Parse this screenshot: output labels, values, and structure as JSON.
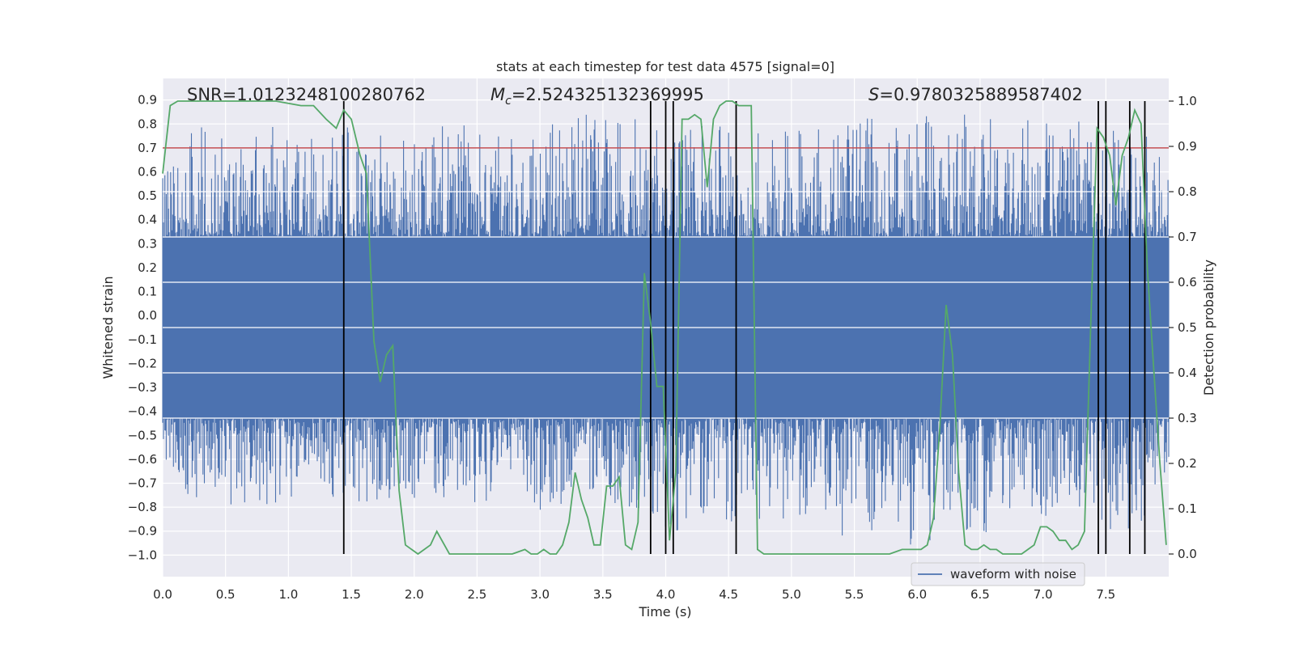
{
  "chart_data": {
    "type": "line",
    "title": "stats at each timestep for test data 4575 [signal=0]",
    "xlabel": "Time (s)",
    "ylabel": "Whitened strain",
    "y2label": "Detection probability",
    "xlim": [
      0.0,
      8.0
    ],
    "ylim": [
      -1.09,
      0.99
    ],
    "y2lim": [
      -0.05,
      1.05
    ],
    "xticks": [
      "0.0",
      "0.5",
      "1.0",
      "1.5",
      "2.0",
      "2.5",
      "3.0",
      "3.5",
      "4.0",
      "4.5",
      "5.0",
      "5.5",
      "6.0",
      "6.5",
      "7.0",
      "7.5"
    ],
    "yticks": [
      "0.9",
      "0.8",
      "0.7",
      "0.6",
      "0.5",
      "0.4",
      "0.3",
      "0.2",
      "0.1",
      "0.0",
      "−0.1",
      "−0.2",
      "−0.3",
      "−0.4",
      "−0.5",
      "−0.6",
      "−0.7",
      "−0.8",
      "−0.9",
      "−1.0"
    ],
    "y2ticks": [
      "1.0",
      "0.9",
      "0.8",
      "0.7",
      "0.6",
      "0.5",
      "0.4",
      "0.3",
      "0.2",
      "0.1",
      "0.0"
    ],
    "annotations": {
      "snr": "SNR=1.0123248100280762",
      "mc_symbol": "M",
      "mc_sub": "c",
      "mc_value": "=2.524325132369995",
      "s_symbol": "S",
      "s_value": "=0.9780325889587402"
    },
    "legend": {
      "label": "waveform with noise",
      "placement": "lower-right"
    },
    "threshold": {
      "y": 0.7,
      "color": "#c44e52"
    },
    "detection_events_x": [
      1.44,
      3.88,
      4.0,
      4.06,
      4.56,
      7.44,
      7.5,
      7.69,
      7.81
    ],
    "series": [
      {
        "name": "waveform with noise",
        "axis": "left",
        "color": "#4c72b0",
        "note_kind": "dense noise envelope",
        "x": [
          0.0,
          0.25,
          0.5,
          0.75,
          1.0,
          1.25,
          1.5,
          1.75,
          2.0,
          2.25,
          2.5,
          2.75,
          3.0,
          3.25,
          3.5,
          3.75,
          4.0,
          4.25,
          4.5,
          4.75,
          5.0,
          5.25,
          5.5,
          5.75,
          6.0,
          6.25,
          6.5,
          6.75,
          7.0,
          7.25,
          7.5,
          7.75,
          8.0
        ],
        "upper": [
          0.62,
          0.8,
          0.79,
          0.8,
          0.8,
          0.81,
          0.82,
          0.76,
          0.84,
          0.79,
          0.8,
          0.76,
          0.88,
          0.83,
          0.85,
          0.83,
          0.82,
          0.85,
          0.8,
          0.78,
          0.79,
          0.8,
          0.84,
          0.83,
          0.85,
          0.84,
          0.85,
          0.83,
          0.82,
          0.81,
          0.86,
          0.8,
          0.63
        ],
        "lower": [
          -0.66,
          -0.8,
          -0.79,
          -0.8,
          -0.79,
          -0.71,
          -0.84,
          -0.78,
          -0.79,
          -0.77,
          -0.78,
          -0.8,
          -0.86,
          -0.77,
          -0.79,
          -0.8,
          -0.97,
          -0.86,
          -0.88,
          -0.85,
          -0.87,
          -0.81,
          -0.99,
          -0.83,
          -1.0,
          -0.91,
          -0.93,
          -0.81,
          -0.85,
          -0.8,
          -0.91,
          -0.9,
          -0.64
        ]
      },
      {
        "name": "",
        "axis": "right",
        "color": "#55a868",
        "x": [
          0.0,
          0.06,
          0.12,
          0.3,
          0.6,
          0.9,
          1.1,
          1.2,
          1.3,
          1.38,
          1.44,
          1.5,
          1.57,
          1.62,
          1.68,
          1.73,
          1.78,
          1.83,
          1.88,
          1.93,
          1.98,
          2.03,
          2.08,
          2.13,
          2.18,
          2.28,
          2.38,
          2.48,
          2.58,
          2.68,
          2.78,
          2.88,
          2.93,
          2.98,
          3.03,
          3.08,
          3.13,
          3.18,
          3.23,
          3.28,
          3.33,
          3.38,
          3.43,
          3.48,
          3.53,
          3.58,
          3.63,
          3.68,
          3.73,
          3.78,
          3.83,
          3.88,
          3.93,
          3.98,
          4.03,
          4.08,
          4.13,
          4.18,
          4.23,
          4.28,
          4.33,
          4.38,
          4.43,
          4.48,
          4.53,
          4.58,
          4.63,
          4.68,
          4.73,
          4.78,
          4.88,
          4.98,
          5.08,
          5.18,
          5.28,
          5.38,
          5.48,
          5.58,
          5.68,
          5.78,
          5.88,
          5.98,
          6.03,
          6.08,
          6.13,
          6.18,
          6.23,
          6.28,
          6.33,
          6.38,
          6.43,
          6.48,
          6.53,
          6.58,
          6.63,
          6.68,
          6.73,
          6.78,
          6.83,
          6.88,
          6.93,
          6.98,
          7.03,
          7.08,
          7.13,
          7.18,
          7.23,
          7.28,
          7.33,
          7.38,
          7.43,
          7.48,
          7.53,
          7.58,
          7.63,
          7.68,
          7.73,
          7.78,
          7.83,
          7.88,
          7.93,
          7.98
        ],
        "y": [
          0.84,
          0.99,
          1.0,
          1.0,
          1.0,
          1.0,
          0.99,
          0.99,
          0.96,
          0.94,
          0.98,
          0.96,
          0.88,
          0.84,
          0.47,
          0.38,
          0.44,
          0.46,
          0.14,
          0.02,
          0.01,
          0.0,
          0.01,
          0.02,
          0.05,
          0.0,
          0.0,
          0.0,
          0.0,
          0.0,
          0.0,
          0.01,
          0.0,
          0.0,
          0.01,
          0.0,
          0.0,
          0.02,
          0.07,
          0.18,
          0.12,
          0.08,
          0.02,
          0.02,
          0.15,
          0.15,
          0.17,
          0.02,
          0.01,
          0.07,
          0.62,
          0.51,
          0.37,
          0.37,
          0.03,
          0.18,
          0.96,
          0.96,
          0.97,
          0.96,
          0.81,
          0.96,
          0.99,
          1.0,
          1.0,
          0.99,
          0.99,
          0.99,
          0.01,
          0.0,
          0.0,
          0.0,
          0.0,
          0.0,
          0.0,
          0.0,
          0.0,
          0.0,
          0.0,
          0.0,
          0.01,
          0.01,
          0.01,
          0.02,
          0.08,
          0.28,
          0.55,
          0.44,
          0.18,
          0.02,
          0.01,
          0.01,
          0.02,
          0.01,
          0.01,
          0.0,
          0.0,
          0.0,
          0.0,
          0.01,
          0.02,
          0.06,
          0.06,
          0.05,
          0.03,
          0.03,
          0.01,
          0.02,
          0.05,
          0.51,
          0.94,
          0.92,
          0.88,
          0.77,
          0.88,
          0.92,
          0.98,
          0.95,
          0.63,
          0.41,
          0.2,
          0.02
        ]
      }
    ]
  }
}
